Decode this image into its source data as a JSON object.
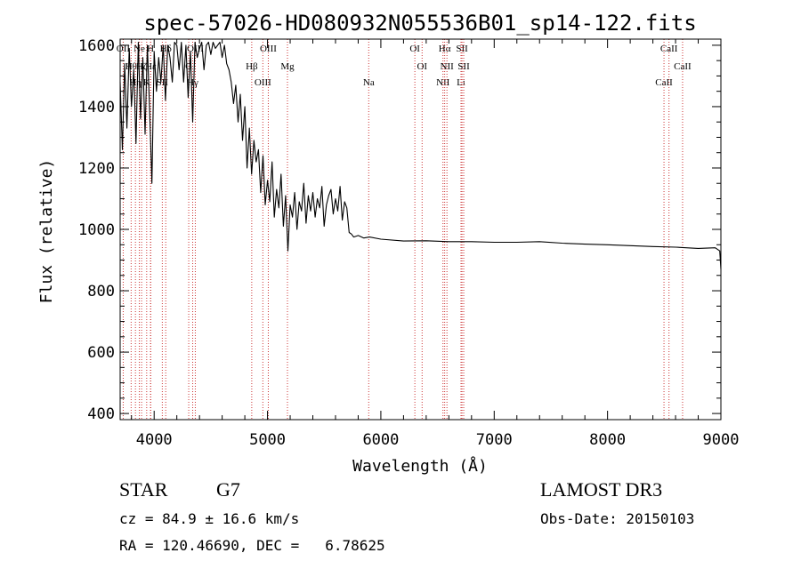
{
  "chart_data": {
    "type": "line",
    "title": "spec-57026-HD080932N055536B01_sp14-122.fits",
    "xlabel": "Wavelength (Å)",
    "ylabel": "Flux (relative)",
    "xlim": [
      3700,
      9000
    ],
    "ylim": [
      380,
      1620
    ],
    "xticks": [
      4000,
      5000,
      6000,
      7000,
      8000,
      9000
    ],
    "yticks": [
      400,
      600,
      800,
      1000,
      1200,
      1400,
      1600
    ],
    "grid": false,
    "legend": "none",
    "line_color": "#000000",
    "marker_color": "#cc3333",
    "series": [
      {
        "x": [
          3700,
          3720,
          3740,
          3760,
          3780,
          3800,
          3820,
          3840,
          3860,
          3880,
          3900,
          3920,
          3940,
          3960,
          3980,
          4000,
          4020,
          4040,
          4060,
          4080,
          4100,
          4120,
          4140,
          4160,
          4180,
          4200,
          4220,
          4240,
          4260,
          4280,
          4300,
          4320,
          4340,
          4360,
          4380,
          4400,
          4420,
          4440,
          4460,
          4480,
          4500,
          4520,
          4540,
          4560,
          4580,
          4600,
          4620,
          4640,
          4660,
          4680,
          4700,
          4720,
          4740,
          4760,
          4780,
          4800,
          4820,
          4840,
          4860,
          4880,
          4900,
          4920,
          4940,
          4960,
          4980,
          5000,
          5020,
          5040,
          5060,
          5080,
          5100,
          5120,
          5140,
          5160,
          5180,
          5200,
          5220,
          5240,
          5260,
          5280,
          5300,
          5320,
          5340,
          5360,
          5380,
          5400,
          5420,
          5440,
          5460,
          5480,
          5500,
          5520,
          5540,
          5560,
          5580,
          5600,
          5620,
          5640,
          5660,
          5680,
          5700,
          5720,
          5740,
          5760,
          5800,
          5850,
          5900,
          6000,
          6200,
          6400,
          6600,
          6800,
          7000,
          7200,
          7400,
          7600,
          7800,
          8000,
          8200,
          8400,
          8600,
          8800,
          8950,
          8990,
          9000
        ],
        "y": [
          1480,
          1260,
          1540,
          1330,
          1590,
          1400,
          1520,
          1280,
          1610,
          1360,
          1560,
          1310,
          1600,
          1390,
          1150,
          1580,
          1450,
          1560,
          1480,
          1600,
          1420,
          1600,
          1560,
          1480,
          1610,
          1600,
          1520,
          1610,
          1480,
          1600,
          1430,
          1580,
          1350,
          1610,
          1560,
          1590,
          1610,
          1520,
          1600,
          1610,
          1570,
          1610,
          1590,
          1600,
          1610,
          1560,
          1600,
          1540,
          1520,
          1480,
          1410,
          1470,
          1350,
          1440,
          1290,
          1400,
          1200,
          1330,
          1180,
          1290,
          1220,
          1260,
          1120,
          1240,
          1080,
          1160,
          1090,
          1220,
          1040,
          1130,
          1070,
          1180,
          1010,
          1110,
          930,
          1080,
          1040,
          1120,
          1000,
          1090,
          1060,
          1150,
          1020,
          1110,
          1060,
          1120,
          1040,
          1100,
          1070,
          1140,
          1010,
          1080,
          1110,
          1130,
          1050,
          1100,
          1060,
          1140,
          1030,
          1090,
          1070,
          990,
          985,
          975,
          980,
          972,
          975,
          968,
          962,
          963,
          960,
          960,
          958,
          958,
          960,
          955,
          952,
          950,
          947,
          944,
          942,
          938,
          940,
          930,
          870
        ]
      }
    ],
    "lines": [
      {
        "label": "OII",
        "x": 3727
      },
      {
        "label": "Hθ",
        "x": 3797
      },
      {
        "label": "Hη",
        "x": 3835
      },
      {
        "label": "Ne",
        "x": 3869
      },
      {
        "label": "Hζ",
        "x": 3889
      },
      {
        "label": "K",
        "x": 3934
      },
      {
        "label": "H",
        "x": 3968
      },
      {
        "label": "Hε",
        "x": 3970
      },
      {
        "label": "SII",
        "x": 4072
      },
      {
        "label": "Hδ",
        "x": 4102
      },
      {
        "label": "G",
        "x": 4305
      },
      {
        "label": "Hγ",
        "x": 4340
      },
      {
        "label": "OIII",
        "x": 4363
      },
      {
        "label": "Hβ",
        "x": 4861
      },
      {
        "label": "OIII",
        "x": 4959
      },
      {
        "label": "OIII",
        "x": 5007
      },
      {
        "label": "Mg",
        "x": 5176
      },
      {
        "label": "Na",
        "x": 5893
      },
      {
        "label": "OI",
        "x": 6300
      },
      {
        "label": "OI",
        "x": 6364
      },
      {
        "label": "NII",
        "x": 6548
      },
      {
        "label": "Hα",
        "x": 6563
      },
      {
        "label": "NII",
        "x": 6583
      },
      {
        "label": "Li",
        "x": 6707
      },
      {
        "label": "SII",
        "x": 6716
      },
      {
        "label": "SII",
        "x": 6731
      },
      {
        "label": "CaII",
        "x": 8498
      },
      {
        "label": "CaII",
        "x": 8542
      },
      {
        "label": "CaII",
        "x": 8662
      }
    ]
  },
  "info": {
    "object_class": "STAR",
    "subclass": "G7",
    "survey": "LAMOST DR3",
    "redshift": "cz = 84.9 ± 16.6 km/s",
    "obs_date": "Obs-Date: 20150103",
    "coords": "RA = 120.46690, DEC =   6.78625"
  }
}
